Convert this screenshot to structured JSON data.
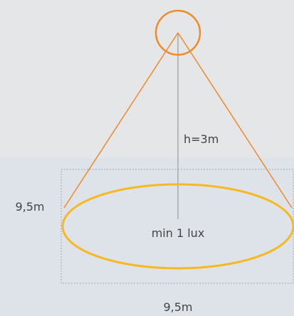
{
  "height_label": "h=3m",
  "center_label": "min 1 lux",
  "side_label": "9,5m",
  "bottom_label": "9,5m"
}
